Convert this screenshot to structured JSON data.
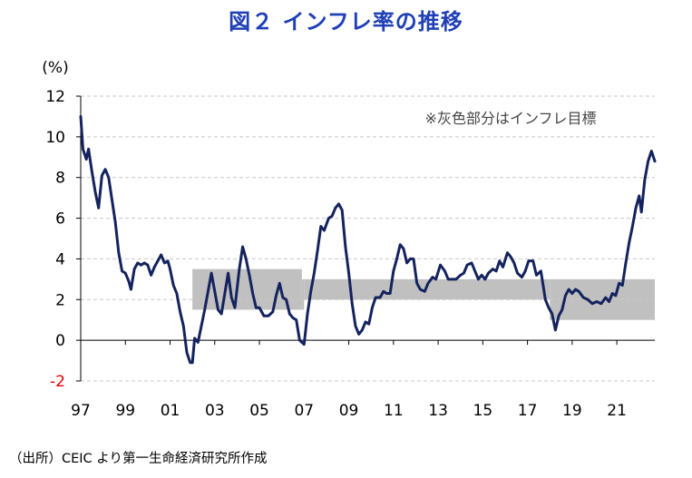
{
  "title": "図２ インフレ率の推移",
  "source": "（出所）CEIC より第一生命経済研究所作成",
  "chart_data": {
    "type": "line",
    "title": "図２ インフレ率の推移",
    "xlabel": "",
    "ylabel": "(%)",
    "ylim": [
      -2,
      12
    ],
    "xlim": [
      1997,
      2022.7
    ],
    "yticks": [
      -2,
      0,
      2,
      4,
      6,
      8,
      10,
      12
    ],
    "ytick_labels": [
      "-2",
      "0",
      "2",
      "4",
      "6",
      "8",
      "10",
      "12"
    ],
    "xtick_labels": [
      "97",
      "99",
      "01",
      "03",
      "05",
      "07",
      "09",
      "11",
      "13",
      "15",
      "17",
      "19",
      "21"
    ],
    "xticks": [
      1997,
      1999,
      2001,
      2003,
      2005,
      2007,
      2009,
      2011,
      2013,
      2015,
      2017,
      2019,
      2021
    ],
    "grid": true,
    "legend": "none",
    "annotation": "※灰色部分はインフレ目標",
    "line_color": "#14235e",
    "band_color": "#c0c0c0",
    "target_band": [
      {
        "start": 2002.0,
        "end": 2006.9,
        "low": 1.5,
        "high": 3.5
      },
      {
        "start": 2006.9,
        "end": 2007.0,
        "low": 1.5,
        "high": 3.0
      },
      {
        "start": 2007.0,
        "end": 2018.0,
        "low": 2.0,
        "high": 3.0
      },
      {
        "start": 2018.0,
        "end": 2022.7,
        "low": 1.0,
        "high": 3.0
      }
    ],
    "series": [
      {
        "values": [
          [
            1997.0,
            11.0
          ],
          [
            1997.1,
            9.4
          ],
          [
            1997.25,
            8.9
          ],
          [
            1997.35,
            9.4
          ],
          [
            1997.5,
            8.3
          ],
          [
            1997.65,
            7.3
          ],
          [
            1997.8,
            6.5
          ],
          [
            1997.95,
            8.1
          ],
          [
            1998.1,
            8.4
          ],
          [
            1998.25,
            8.0
          ],
          [
            1998.4,
            6.9
          ],
          [
            1998.55,
            5.8
          ],
          [
            1998.7,
            4.3
          ],
          [
            1998.85,
            3.4
          ],
          [
            1999.0,
            3.3
          ],
          [
            1999.15,
            2.9
          ],
          [
            1999.25,
            2.5
          ],
          [
            1999.4,
            3.5
          ],
          [
            1999.55,
            3.8
          ],
          [
            1999.7,
            3.7
          ],
          [
            1999.85,
            3.8
          ],
          [
            2000.0,
            3.7
          ],
          [
            2000.15,
            3.2
          ],
          [
            2000.3,
            3.6
          ],
          [
            2000.45,
            3.9
          ],
          [
            2000.6,
            4.2
          ],
          [
            2000.75,
            3.8
          ],
          [
            2000.9,
            3.9
          ],
          [
            2001.0,
            3.5
          ],
          [
            2001.15,
            2.7
          ],
          [
            2001.3,
            2.3
          ],
          [
            2001.45,
            1.4
          ],
          [
            2001.6,
            0.7
          ],
          [
            2001.75,
            -0.6
          ],
          [
            2001.9,
            -1.1
          ],
          [
            2002.0,
            -1.1
          ],
          [
            2002.1,
            0.1
          ],
          [
            2002.25,
            -0.1
          ],
          [
            2002.4,
            0.7
          ],
          [
            2002.55,
            1.5
          ],
          [
            2002.7,
            2.4
          ],
          [
            2002.85,
            3.3
          ],
          [
            2003.0,
            2.4
          ],
          [
            2003.15,
            1.5
          ],
          [
            2003.3,
            1.3
          ],
          [
            2003.45,
            2.3
          ],
          [
            2003.6,
            3.3
          ],
          [
            2003.75,
            2.1
          ],
          [
            2003.9,
            1.6
          ],
          [
            2004.1,
            3.5
          ],
          [
            2004.25,
            4.6
          ],
          [
            2004.4,
            4.0
          ],
          [
            2004.55,
            3.2
          ],
          [
            2004.7,
            2.3
          ],
          [
            2004.85,
            1.6
          ],
          [
            2005.0,
            1.6
          ],
          [
            2005.2,
            1.2
          ],
          [
            2005.4,
            1.2
          ],
          [
            2005.6,
            1.4
          ],
          [
            2005.75,
            2.2
          ],
          [
            2005.9,
            2.8
          ],
          [
            2006.05,
            2.1
          ],
          [
            2006.2,
            2.0
          ],
          [
            2006.35,
            1.3
          ],
          [
            2006.5,
            1.1
          ],
          [
            2006.65,
            1.0
          ],
          [
            2006.8,
            0.0
          ],
          [
            2007.0,
            -0.2
          ],
          [
            2007.15,
            1.3
          ],
          [
            2007.3,
            2.4
          ],
          [
            2007.45,
            3.3
          ],
          [
            2007.6,
            4.4
          ],
          [
            2007.75,
            5.6
          ],
          [
            2007.9,
            5.4
          ],
          [
            2008.1,
            6.0
          ],
          [
            2008.25,
            6.1
          ],
          [
            2008.4,
            6.5
          ],
          [
            2008.55,
            6.7
          ],
          [
            2008.7,
            6.4
          ],
          [
            2008.85,
            4.6
          ],
          [
            2009.0,
            3.3
          ],
          [
            2009.15,
            1.8
          ],
          [
            2009.3,
            0.7
          ],
          [
            2009.45,
            0.3
          ],
          [
            2009.6,
            0.5
          ],
          [
            2009.75,
            0.9
          ],
          [
            2009.9,
            0.8
          ],
          [
            2010.05,
            1.6
          ],
          [
            2010.2,
            2.1
          ],
          [
            2010.4,
            2.1
          ],
          [
            2010.55,
            2.4
          ],
          [
            2010.7,
            2.3
          ],
          [
            2010.85,
            2.3
          ],
          [
            2011.0,
            3.4
          ],
          [
            2011.15,
            4.0
          ],
          [
            2011.3,
            4.7
          ],
          [
            2011.45,
            4.5
          ],
          [
            2011.6,
            3.8
          ],
          [
            2011.75,
            4.0
          ],
          [
            2011.9,
            4.0
          ],
          [
            2012.05,
            2.8
          ],
          [
            2012.2,
            2.5
          ],
          [
            2012.4,
            2.4
          ],
          [
            2012.55,
            2.8
          ],
          [
            2012.75,
            3.1
          ],
          [
            2012.9,
            3.0
          ],
          [
            2013.1,
            3.7
          ],
          [
            2013.3,
            3.4
          ],
          [
            2013.45,
            3.0
          ],
          [
            2013.6,
            3.0
          ],
          [
            2013.8,
            3.0
          ],
          [
            2014.0,
            3.2
          ],
          [
            2014.15,
            3.3
          ],
          [
            2014.3,
            3.7
          ],
          [
            2014.5,
            3.8
          ],
          [
            2014.65,
            3.4
          ],
          [
            2014.8,
            3.0
          ],
          [
            2014.95,
            3.2
          ],
          [
            2015.1,
            3.0
          ],
          [
            2015.25,
            3.3
          ],
          [
            2015.45,
            3.5
          ],
          [
            2015.6,
            3.4
          ],
          [
            2015.75,
            3.9
          ],
          [
            2015.9,
            3.6
          ],
          [
            2016.1,
            4.3
          ],
          [
            2016.25,
            4.1
          ],
          [
            2016.4,
            3.8
          ],
          [
            2016.55,
            3.3
          ],
          [
            2016.75,
            3.1
          ],
          [
            2016.9,
            3.4
          ],
          [
            2017.05,
            3.9
          ],
          [
            2017.25,
            3.9
          ],
          [
            2017.4,
            3.2
          ],
          [
            2017.6,
            3.4
          ],
          [
            2017.8,
            2.0
          ],
          [
            2017.95,
            1.6
          ],
          [
            2018.1,
            1.3
          ],
          [
            2018.25,
            0.5
          ],
          [
            2018.4,
            1.2
          ],
          [
            2018.55,
            1.5
          ],
          [
            2018.7,
            2.2
          ],
          [
            2018.85,
            2.5
          ],
          [
            2019.0,
            2.3
          ],
          [
            2019.15,
            2.5
          ],
          [
            2019.3,
            2.4
          ],
          [
            2019.5,
            2.1
          ],
          [
            2019.7,
            2.0
          ],
          [
            2019.9,
            1.8
          ],
          [
            2020.1,
            1.9
          ],
          [
            2020.3,
            1.8
          ],
          [
            2020.5,
            2.1
          ],
          [
            2020.65,
            1.9
          ],
          [
            2020.8,
            2.3
          ],
          [
            2020.95,
            2.2
          ],
          [
            2021.1,
            2.8
          ],
          [
            2021.25,
            2.7
          ],
          [
            2021.4,
            3.8
          ],
          [
            2021.55,
            4.8
          ],
          [
            2021.7,
            5.6
          ],
          [
            2021.85,
            6.5
          ],
          [
            2022.0,
            7.1
          ],
          [
            2022.1,
            6.3
          ],
          [
            2022.25,
            7.9
          ],
          [
            2022.4,
            8.8
          ],
          [
            2022.55,
            9.3
          ],
          [
            2022.7,
            8.8
          ]
        ]
      }
    ]
  }
}
